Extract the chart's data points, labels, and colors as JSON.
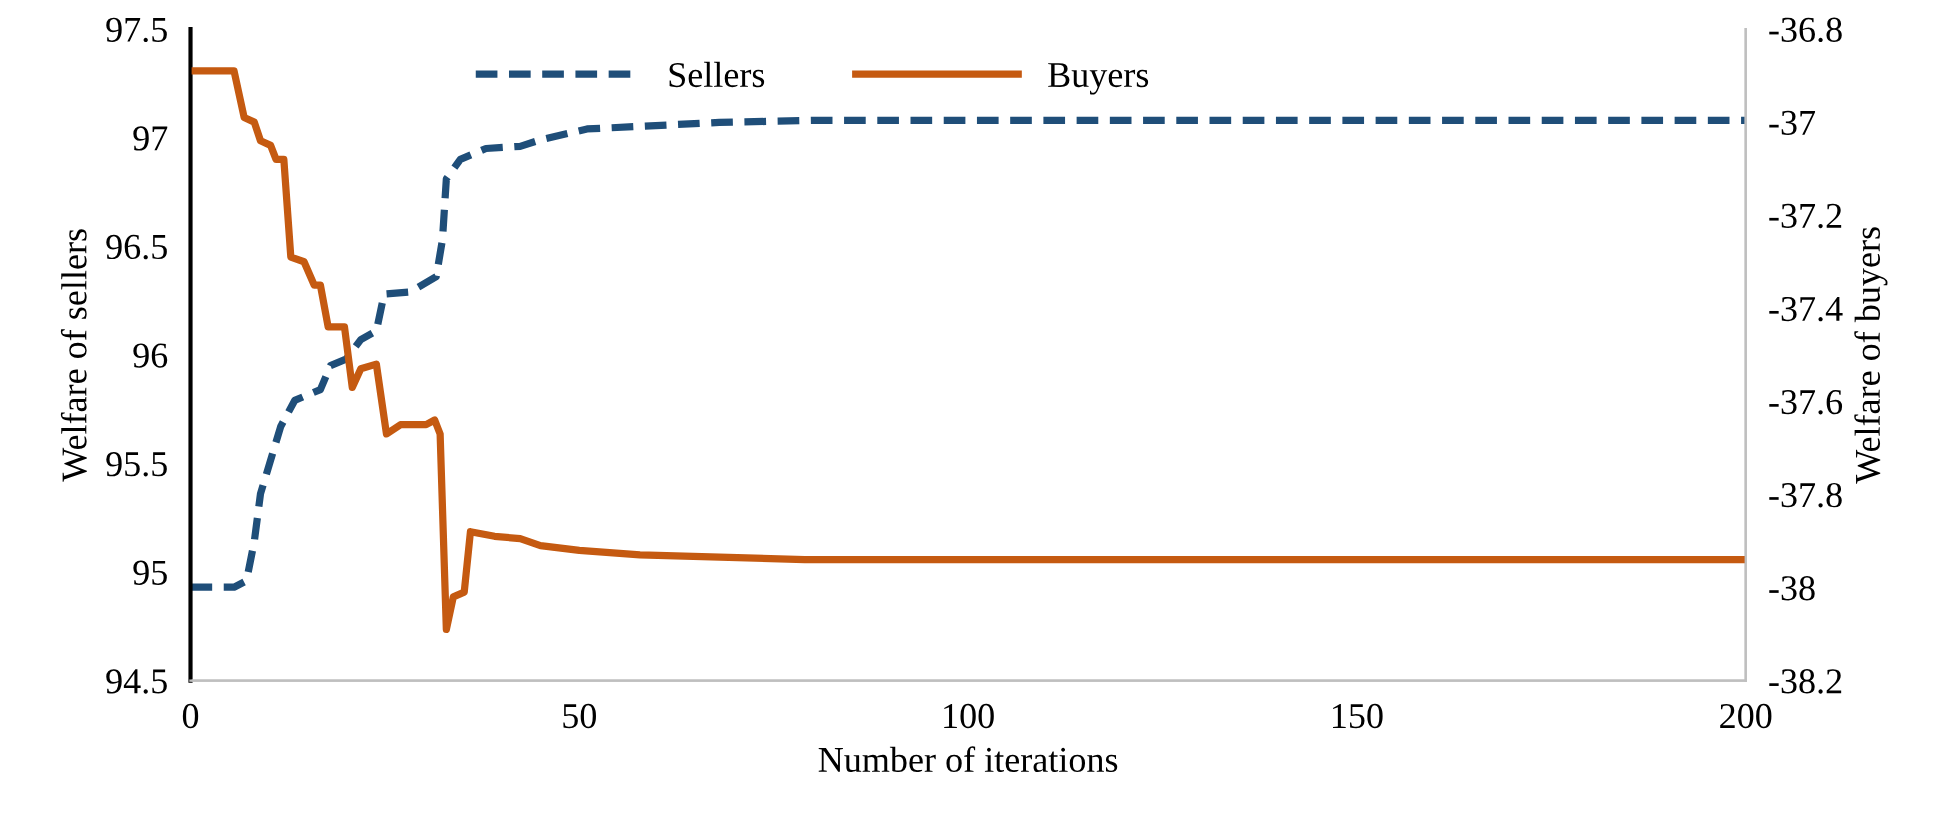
{
  "chart_data": {
    "type": "line",
    "xlabel": "Number of iterations",
    "ylabel": "Welfare of sellers",
    "y2label": "Welfare of buyers",
    "xlim": [
      0,
      200
    ],
    "xticks": [
      0,
      50,
      100,
      150,
      200
    ],
    "ylim": [
      94.5,
      97.5
    ],
    "yticks": [
      94.5,
      95,
      95.5,
      96,
      96.5,
      97,
      97.5
    ],
    "y2lim": [
      -38.2,
      -36.8
    ],
    "y2ticks": [
      -38.2,
      -38,
      -37.8,
      -37.6,
      -37.4,
      -37.2,
      -37,
      -36.8
    ],
    "legend": "top",
    "grid": false,
    "series": [
      {
        "name": "Sellers",
        "color": "#1f4e79",
        "line_style": "dashed",
        "x": [
          0,
          5.6,
          7.2,
          8.2,
          9,
          11.6,
          13.4,
          16.7,
          18,
          20,
          21.9,
          23.9,
          24.9,
          28.3,
          31.6,
          32.4,
          32.9,
          34.7,
          38,
          42.4,
          45,
          51,
          68,
          81,
          200
        ],
        "values": [
          94.93,
          94.93,
          94.96,
          95.14,
          95.36,
          95.67,
          95.79,
          95.84,
          95.95,
          95.98,
          96.07,
          96.11,
          96.28,
          96.29,
          96.36,
          96.53,
          96.81,
          96.9,
          96.95,
          96.96,
          96.99,
          97.04,
          97.07,
          97.08,
          97.08
        ]
      },
      {
        "name": "Buyers",
        "color": "#c55a11",
        "line_style": "solid",
        "axis": "y2",
        "x": [
          0,
          5.6,
          6.9,
          8.2,
          9,
          10.3,
          11,
          12,
          12.9,
          14.6,
          15.9,
          16.7,
          17.7,
          19.8,
          20.8,
          21.9,
          23.9,
          25.2,
          27,
          30.3,
          31.4,
          32.1,
          32.9,
          33.8,
          35.2,
          36,
          39.1,
          42.4,
          45,
          50,
          57.8,
          79,
          200
        ],
        "values": [
          -36.89,
          -36.89,
          -36.99,
          -37.0,
          -37.04,
          -37.05,
          -37.08,
          -37.08,
          -37.29,
          -37.3,
          -37.35,
          -37.35,
          -37.44,
          -37.44,
          -37.57,
          -37.53,
          -37.52,
          -37.67,
          -37.65,
          -37.65,
          -37.64,
          -37.67,
          -38.09,
          -38.02,
          -38.01,
          -37.88,
          -37.89,
          -37.895,
          -37.91,
          -37.92,
          -37.93,
          -37.94,
          -37.94
        ]
      }
    ]
  }
}
